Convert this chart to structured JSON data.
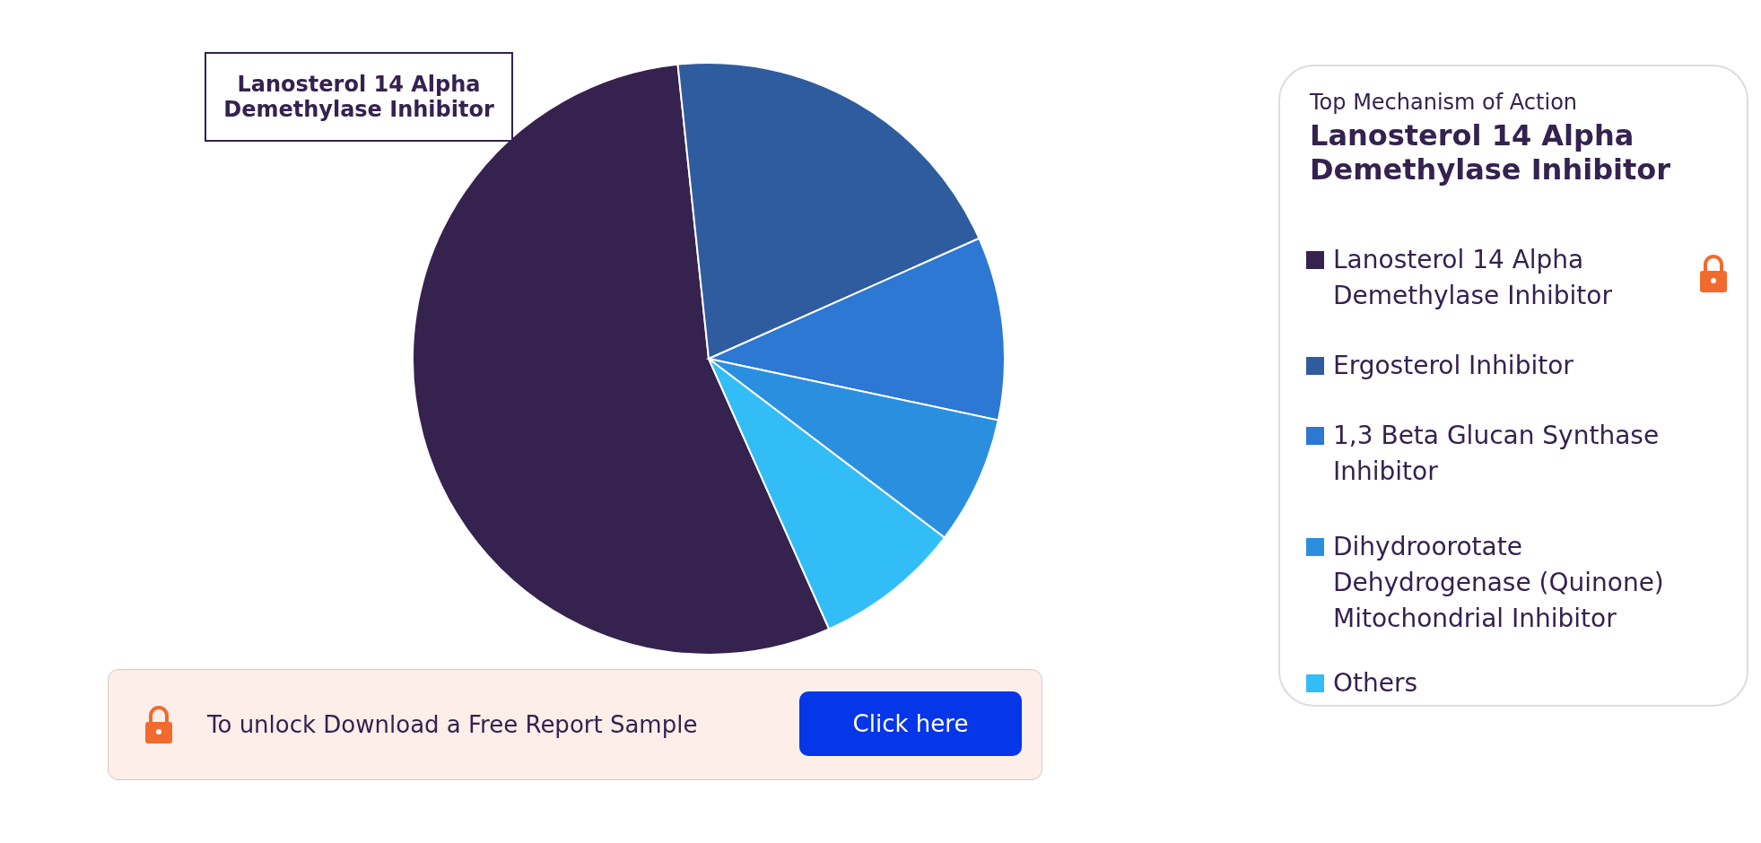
{
  "chart_data": {
    "type": "pie",
    "legend_title": "Top Mechanism of Action",
    "categories": [
      "Lanosterol 14 Alpha Demethylase Inhibitor",
      "Ergosterol Inhibitor",
      "1,3 Beta Glucan Synthase Inhibitor",
      "Dihydroorotate Dehydrogenase (Quinone) Mitochondrial Inhibitor",
      "Others"
    ],
    "values": [
      55,
      20,
      10,
      7,
      8
    ],
    "colors": [
      "#35224f",
      "#2e5c9e",
      "#2c78d3",
      "#2b8fe0",
      "#33bdf6"
    ],
    "legend": "right",
    "annotations": [
      "Lanosterol 14 Alpha Demethylase Inhibitor",
      "Lanosterol 14 Alpha Demethylase Inhibitor",
      "To unlock Download a Free Report Sample",
      "Click here"
    ]
  }
}
